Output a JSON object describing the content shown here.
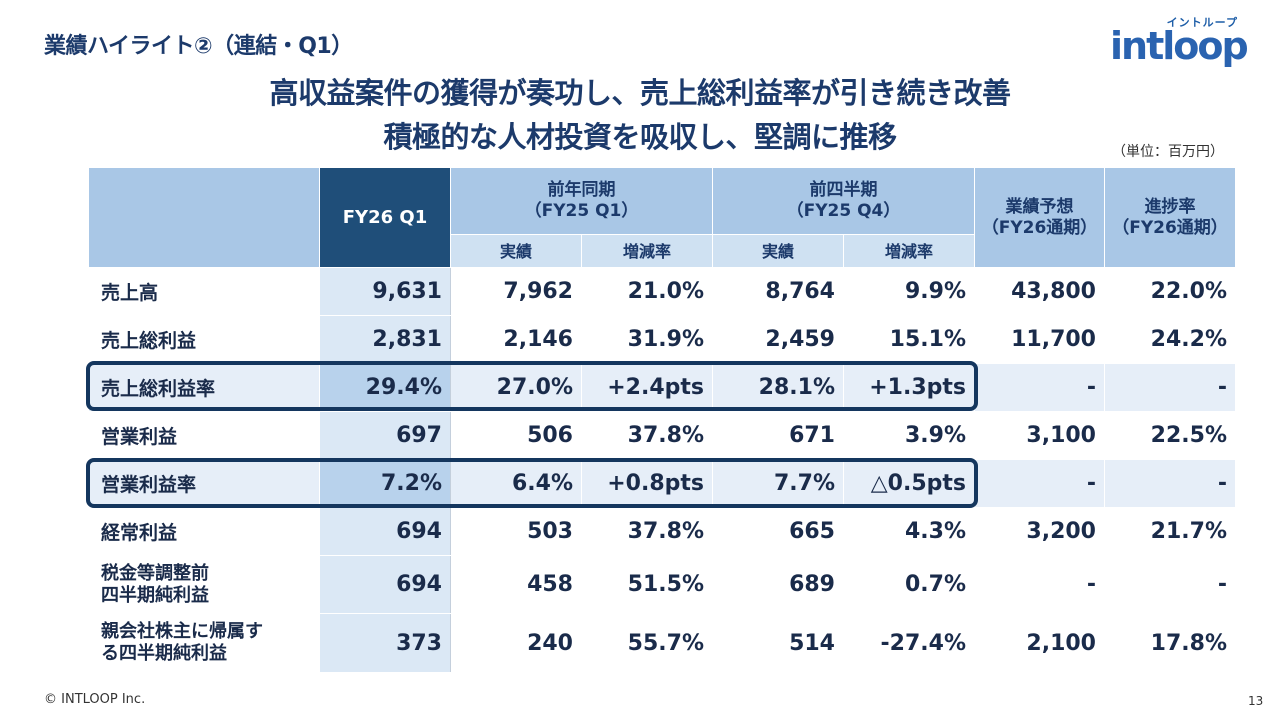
{
  "slide": {
    "section_title": "業績ハイライト②（連結・Q1）",
    "headline_1": "高収益案件の獲得が奏功し、売上総利益率が引き続き改善",
    "headline_2": "積極的な人材投資を吸収し、堅調に推移",
    "unit": "（単位：百万円）",
    "copyright": "© INTLOOP Inc.",
    "page_number": "13"
  },
  "logo": {
    "kana": "イントループ",
    "word": "intloop",
    "color": "#2a63b0"
  },
  "table": {
    "headers": {
      "current": "FY26 Q1",
      "yoy_line1": "前年同期",
      "yoy_line2": "（FY25 Q1）",
      "qoq_line1": "前四半期",
      "qoq_line2": "（FY25 Q4）",
      "forecast_line1": "業績予想",
      "forecast_line2": "（FY26通期）",
      "progress_line1": "進捗率",
      "progress_line2": "（FY26通期）",
      "actual": "実績",
      "change": "増減率"
    },
    "rows": [
      {
        "label": "売上高",
        "q1": "9,631",
        "yoy_actual": "7,962",
        "yoy_change": "21.0%",
        "qoq_actual": "8,764",
        "qoq_change": "9.9%",
        "forecast": "43,800",
        "progress": "22.0%"
      },
      {
        "label": "売上総利益",
        "q1": "2,831",
        "yoy_actual": "2,146",
        "yoy_change": "31.9%",
        "qoq_actual": "2,459",
        "qoq_change": "15.1%",
        "forecast": "11,700",
        "progress": "24.2%"
      },
      {
        "label": "売上総利益率",
        "q1": "29.4%",
        "yoy_actual": "27.0%",
        "yoy_change": "+2.4pts",
        "qoq_actual": "28.1%",
        "qoq_change": "+1.3pts",
        "forecast": "-",
        "progress": "-"
      },
      {
        "label": "営業利益",
        "q1": "697",
        "yoy_actual": "506",
        "yoy_change": "37.8%",
        "qoq_actual": "671",
        "qoq_change": "3.9%",
        "forecast": "3,100",
        "progress": "22.5%"
      },
      {
        "label": "営業利益率",
        "q1": "7.2%",
        "yoy_actual": "6.4%",
        "yoy_change": "+0.8pts",
        "qoq_actual": "7.7%",
        "qoq_change": "△0.5pts",
        "forecast": "-",
        "progress": "-"
      },
      {
        "label": "経常利益",
        "q1": "694",
        "yoy_actual": "503",
        "yoy_change": "37.8%",
        "qoq_actual": "665",
        "qoq_change": "4.3%",
        "forecast": "3,200",
        "progress": "21.7%"
      },
      {
        "label_line1": "税金等調整前",
        "label_line2": "四半期純利益",
        "q1": "694",
        "yoy_actual": "458",
        "yoy_change": "51.5%",
        "qoq_actual": "689",
        "qoq_change": "0.7%",
        "forecast": "-",
        "progress": "-"
      },
      {
        "label_line1": "親会社株主に帰属す",
        "label_line2": "る四半期純利益",
        "q1": "373",
        "yoy_actual": "240",
        "yoy_change": "55.7%",
        "qoq_actual": "514",
        "qoq_change": "-27.4%",
        "forecast": "2,100",
        "progress": "17.8%"
      }
    ]
  },
  "colors": {
    "title": "#1c3a6b",
    "header_light": "#a9c7e6",
    "header_dark": "#1f4e79",
    "current_column": "#dbe8f5",
    "highlight_box": "#14365e"
  }
}
